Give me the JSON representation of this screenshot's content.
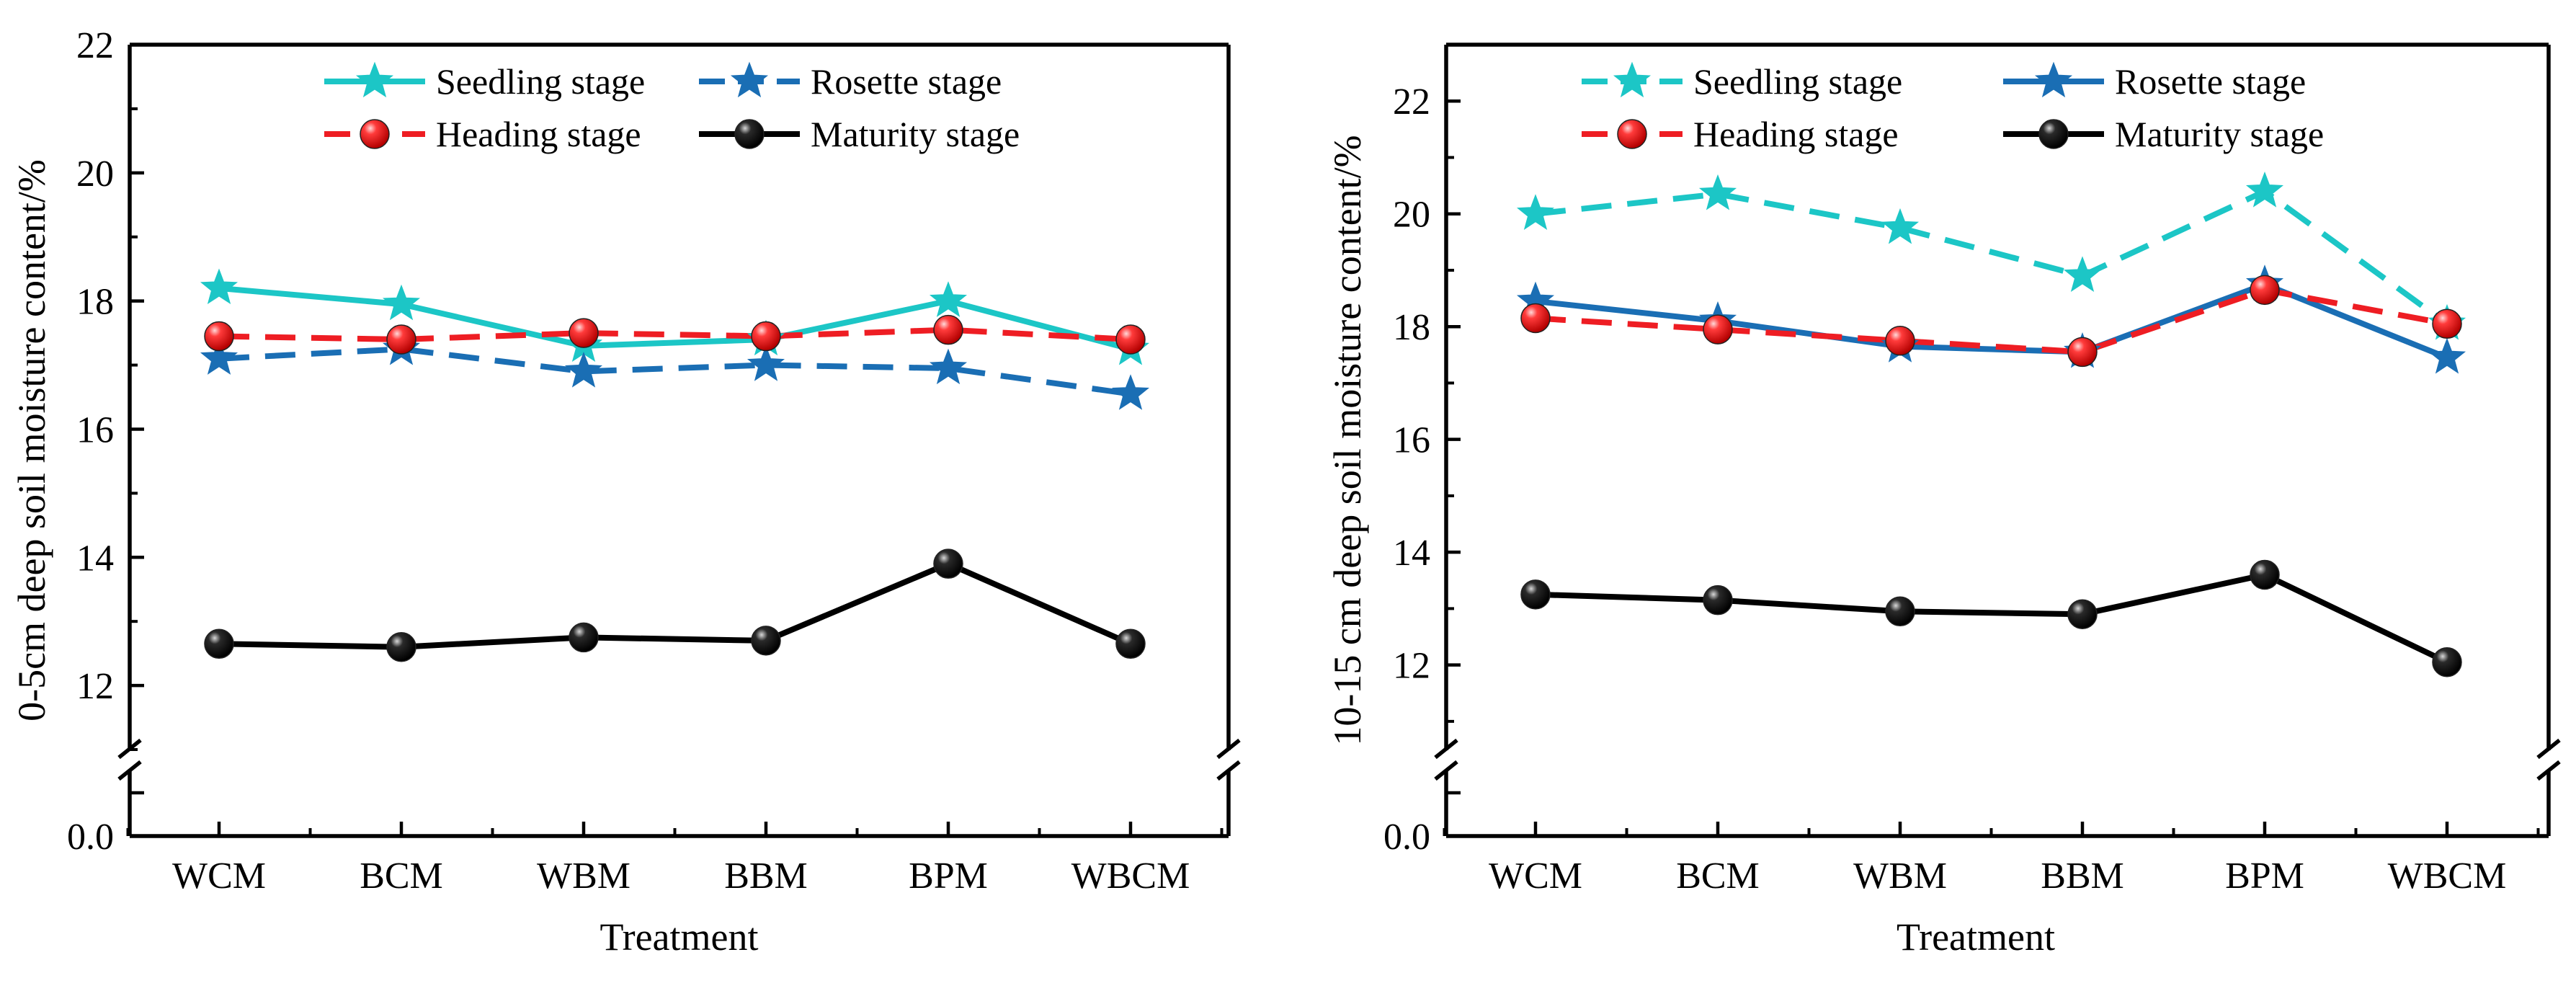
{
  "chart_data": [
    {
      "type": "line",
      "xlabel": "Treatment",
      "ylabel": "0-5cm deep soil moisture content/%",
      "categories": [
        "WCM",
        "BCM",
        "WBM",
        "BBM",
        "BPM",
        "WBCM"
      ],
      "y_ticks": [
        12,
        14,
        16,
        18,
        20,
        22
      ],
      "y_tick_labels": [
        "12",
        "14",
        "16",
        "18",
        "20",
        "22"
      ],
      "axis_break": true,
      "break_zero_label": "0.0",
      "ylim": [
        11,
        22
      ],
      "series": [
        {
          "name": "Seedling stage",
          "values": [
            18.2,
            17.95,
            17.3,
            17.4,
            18.0,
            17.25
          ],
          "color": "#1cc6c6",
          "dash": "solid",
          "marker": "star"
        },
        {
          "name": "Rosette stage",
          "values": [
            17.1,
            17.25,
            16.9,
            17.0,
            16.95,
            16.55
          ],
          "color": "#1a6eb4",
          "dash": "dashed",
          "marker": "star"
        },
        {
          "name": "Heading stage",
          "values": [
            17.45,
            17.4,
            17.5,
            17.45,
            17.55,
            17.4
          ],
          "color": "#ee1d23",
          "dash": "dashed",
          "marker": "ball"
        },
        {
          "name": "Maturity stage",
          "values": [
            12.65,
            12.6,
            12.75,
            12.7,
            13.9,
            12.65
          ],
          "color": "#000000",
          "dash": "solid",
          "marker": "ball"
        }
      ]
    },
    {
      "type": "line",
      "xlabel": "Treatment",
      "ylabel": "10-15 cm deep soil moisture content/%",
      "categories": [
        "WCM",
        "BCM",
        "WBM",
        "BBM",
        "BPM",
        "WBCM"
      ],
      "y_ticks": [
        12,
        14,
        16,
        18,
        20,
        22
      ],
      "y_tick_labels": [
        "12",
        "14",
        "16",
        "18",
        "20",
        "22"
      ],
      "axis_break": true,
      "break_zero_label": "0.0",
      "ylim": [
        10.5,
        23
      ],
      "series": [
        {
          "name": "Seedling stage",
          "values": [
            20.0,
            20.35,
            19.75,
            18.9,
            20.4,
            18.05
          ],
          "color": "#1cc6c6",
          "dash": "dashed",
          "marker": "star"
        },
        {
          "name": "Rosette stage",
          "values": [
            18.45,
            18.1,
            17.65,
            17.55,
            18.75,
            17.45
          ],
          "color": "#1a6eb4",
          "dash": "solid",
          "marker": "star"
        },
        {
          "name": "Heading stage",
          "values": [
            18.15,
            17.95,
            17.75,
            17.55,
            18.65,
            18.05
          ],
          "color": "#ee1d23",
          "dash": "dashed",
          "marker": "ball"
        },
        {
          "name": "Maturity stage",
          "values": [
            13.25,
            13.15,
            12.95,
            12.9,
            13.6,
            12.05
          ],
          "color": "#000000",
          "dash": "solid",
          "marker": "ball"
        }
      ]
    }
  ]
}
